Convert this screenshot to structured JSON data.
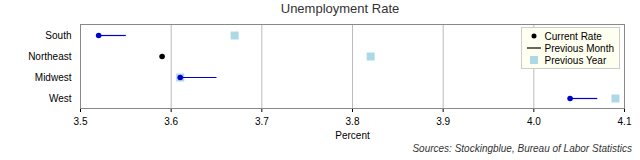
{
  "chart_data": {
    "type": "dot",
    "title": "Unemployment Rate",
    "x_label": "Percent",
    "source": "Sources: Stockingblue, Bureau of Labor Statistics",
    "categories": [
      "South",
      "Northeast",
      "Midwest",
      "West"
    ],
    "series": [
      {
        "name": "Current Rate",
        "type": "scatter",
        "marker": "circle",
        "color": "#000000",
        "colors": [
          "#0000cc",
          "#000000",
          "#0000cc",
          "#0000cc"
        ],
        "values": [
          3.52,
          3.59,
          3.61,
          4.04
        ]
      },
      {
        "name": "Previous Month",
        "type": "line",
        "color": "#0000cc",
        "values": [
          3.55,
          3.59,
          3.65,
          4.07
        ]
      },
      {
        "name": "Previous Year",
        "type": "scatter",
        "marker": "square",
        "color": "#add8e6",
        "values": [
          3.67,
          3.82,
          3.61,
          4.09
        ]
      }
    ],
    "xlim": [
      3.5,
      4.1
    ],
    "xticks": [
      3.5,
      3.6,
      3.7,
      3.8,
      3.9,
      {
        "value": 4,
        "label": "4.0"
      },
      4.1
    ],
    "grid": true,
    "legend": "upper right"
  }
}
